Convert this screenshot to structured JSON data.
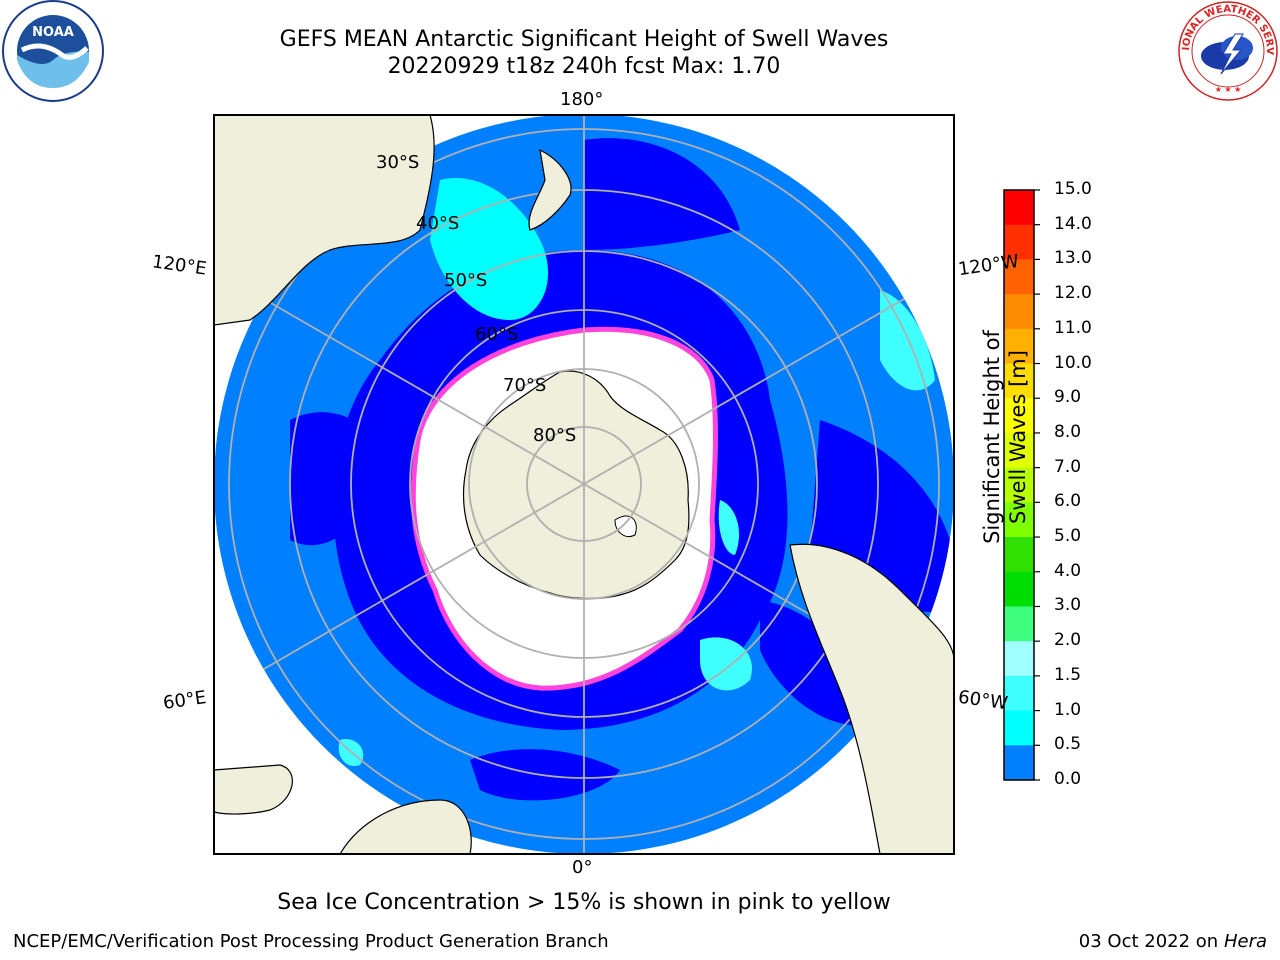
{
  "title_line1": "GEFS MEAN Antarctic Significant Height of Swell Waves",
  "title_line2": "20220929 t18z 240h fcst   Max: 1.70",
  "logos": {
    "left": "NOAA",
    "right": "NATIONAL WEATHER SERVICE"
  },
  "map": {
    "projection": "South polar stereographic",
    "longitude_labels": [
      "180°",
      "120°E",
      "120°W",
      "60°E",
      "60°W",
      "0°"
    ],
    "latitude_labels": [
      "30°S",
      "40°S",
      "50°S",
      "60°S",
      "70°S",
      "80°S"
    ],
    "colors": {
      "land": "#efefdb",
      "ocean_0_0.5": "#0000ff",
      "ocean_0.5_1": "#0080ff",
      "ocean_1_1.5": "#00ffff",
      "ice": "#ffffff",
      "ice_edge": "#ff44dd"
    }
  },
  "colorbar": {
    "label": "Significant Height of Swell Waves [m]",
    "ticks": [
      "15.0",
      "14.0",
      "13.0",
      "12.0",
      "11.0",
      "10.0",
      "9.0",
      "8.0",
      "7.0",
      "6.0",
      "5.0",
      "4.0",
      "3.0",
      "2.0",
      "1.5",
      "1.0",
      "0.5",
      "0.0"
    ],
    "colors": [
      "#ff0000",
      "#ff3000",
      "#ff6000",
      "#ff8c00",
      "#ffb000",
      "#ffdd00",
      "#ffff00",
      "#e0ff00",
      "#b8ff00",
      "#80ff00",
      "#30e000",
      "#00dd00",
      "#40ff80",
      "#a0ffff",
      "#40ffff",
      "#00ffff",
      "#0080ff",
      "#0000ff"
    ]
  },
  "caption": "Sea Ice Concentration > 15% is shown in pink to yellow",
  "footer": {
    "left": "NCEP/EMC/Verification Post Processing Product Generation Branch",
    "right_date": "03 Oct 2022 on ",
    "right_host": "Hera"
  }
}
